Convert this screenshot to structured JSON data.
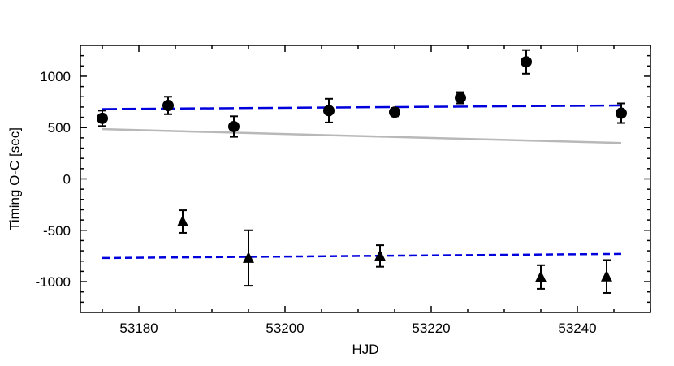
{
  "chart_data": {
    "type": "scatter",
    "title": "",
    "xlabel": "HJD",
    "ylabel": "Timing O-C  [sec]",
    "xlim": [
      53172,
      53250
    ],
    "ylim": [
      -1300,
      1300
    ],
    "x_ticks": [
      53180,
      53200,
      53220,
      53240
    ],
    "x_tick_labels": [
      "53180",
      "53200",
      "53220",
      "53240"
    ],
    "y_ticks": [
      -1000,
      -500,
      0,
      500,
      1000
    ],
    "y_tick_labels": [
      "-1000",
      "-500",
      "0",
      "500",
      "1000"
    ],
    "grid": false,
    "series": [
      {
        "marker": "circle",
        "color": "#000000",
        "points": [
          {
            "x": 53175,
            "y": 590,
            "err": 75
          },
          {
            "x": 53184,
            "y": 715,
            "err": 85
          },
          {
            "x": 53193,
            "y": 510,
            "err": 100
          },
          {
            "x": 53206,
            "y": 665,
            "err": 115
          },
          {
            "x": 53215,
            "y": 650,
            "err": 40
          },
          {
            "x": 53224,
            "y": 790,
            "err": 55
          },
          {
            "x": 53233,
            "y": 1140,
            "err": 115
          },
          {
            "x": 53246,
            "y": 640,
            "err": 95
          }
        ]
      },
      {
        "marker": "triangle",
        "color": "#000000",
        "points": [
          {
            "x": 53186,
            "y": -415,
            "err": 110
          },
          {
            "x": 53195,
            "y": -770,
            "err": 270
          },
          {
            "x": 53213,
            "y": -750,
            "err": 105
          },
          {
            "x": 53235,
            "y": -955,
            "err": 115
          },
          {
            "x": 53244,
            "y": -950,
            "err": 160
          }
        ]
      }
    ],
    "lines": [
      {
        "style": "long-dash",
        "color": "#0000dd",
        "points": [
          [
            53175,
            680
          ],
          [
            53246,
            715
          ]
        ]
      },
      {
        "style": "short-dash",
        "color": "#0000dd",
        "points": [
          [
            53175,
            -770
          ],
          [
            53246,
            -730
          ]
        ]
      },
      {
        "style": "solid",
        "color": "#b8b8b8",
        "points": [
          [
            53175,
            485
          ],
          [
            53246,
            350
          ]
        ]
      }
    ]
  }
}
